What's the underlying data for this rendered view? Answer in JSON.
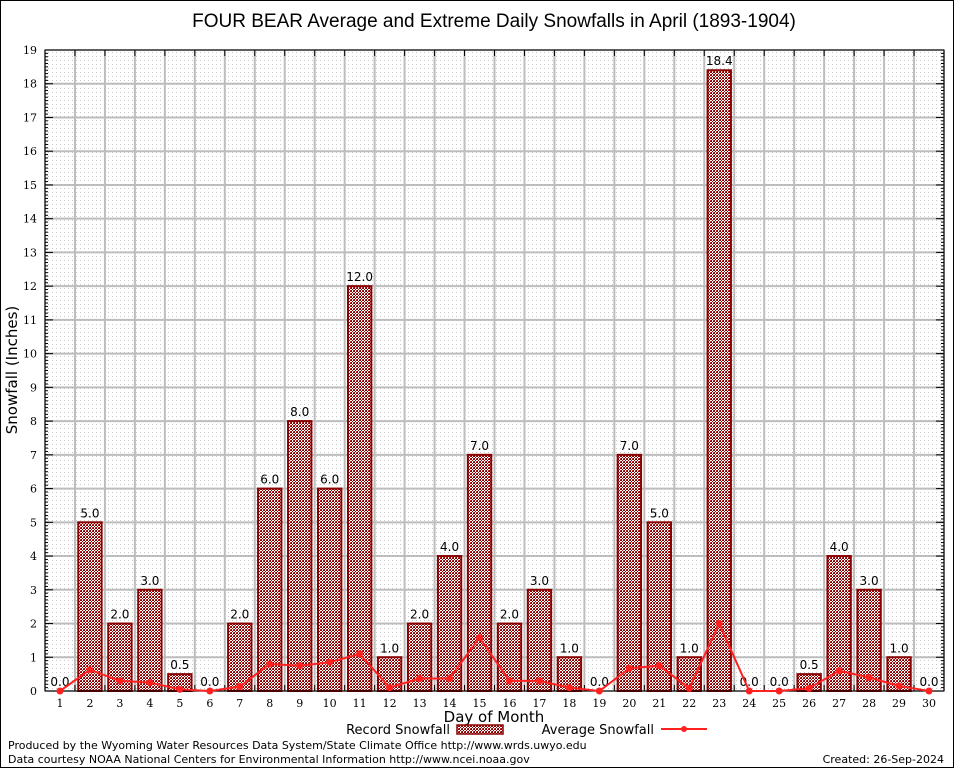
{
  "chart_data": {
    "type": "bar",
    "title": "FOUR BEAR Average and Extreme Daily Snowfalls in April (1893-1904)",
    "xlabel": "Day of Month",
    "ylabel": "Snowfall (Inches)",
    "ylim": [
      0,
      19
    ],
    "yticks": [
      "0",
      "1",
      "2",
      "3",
      "4",
      "5",
      "6",
      "7",
      "8",
      "9",
      "10",
      "11",
      "12",
      "13",
      "14",
      "15",
      "16",
      "17",
      "18",
      "19"
    ],
    "grid": true,
    "categories": [
      "1",
      "2",
      "3",
      "4",
      "5",
      "6",
      "7",
      "8",
      "9",
      "10",
      "11",
      "12",
      "13",
      "14",
      "15",
      "16",
      "17",
      "18",
      "19",
      "20",
      "21",
      "22",
      "23",
      "24",
      "25",
      "26",
      "27",
      "28",
      "29",
      "30"
    ],
    "series": [
      {
        "name": "Record Snowfall",
        "type": "bar",
        "color": "#8b0000",
        "values": [
          0.0,
          5.0,
          2.0,
          3.0,
          0.5,
          0.0,
          2.0,
          6.0,
          8.0,
          6.0,
          12.0,
          1.0,
          2.0,
          4.0,
          7.0,
          2.0,
          3.0,
          1.0,
          0.0,
          7.0,
          5.0,
          1.0,
          18.4,
          0.0,
          0.0,
          0.5,
          4.0,
          3.0,
          1.0,
          0.0
        ],
        "labels": [
          "0.0",
          "5.0",
          "2.0",
          "3.0",
          "0.5",
          "0.0",
          "2.0",
          "6.0",
          "8.0",
          "6.0",
          "12.0",
          "1.0",
          "2.0",
          "4.0",
          "7.0",
          "2.0",
          "3.0",
          "1.0",
          "0.0",
          "7.0",
          "5.0",
          "1.0",
          "18.4",
          "0.0",
          "0.0",
          "0.5",
          "4.0",
          "3.0",
          "1.0",
          "0.0"
        ]
      },
      {
        "name": "Average Snowfall",
        "type": "line",
        "color": "#ff2020",
        "values": [
          0.0,
          0.63,
          0.3,
          0.25,
          0.05,
          0.0,
          0.13,
          0.8,
          0.75,
          0.85,
          1.1,
          0.1,
          0.37,
          0.37,
          1.58,
          0.3,
          0.3,
          0.1,
          0.0,
          0.67,
          0.75,
          0.08,
          2.0,
          0.0,
          0.0,
          0.08,
          0.6,
          0.4,
          0.15,
          0.0
        ]
      }
    ],
    "legend": "bottom-center"
  },
  "footer": {
    "produced": "Produced by the Wyoming Water Resources Data System/State Climate Office http://www.wrds.uwyo.edu",
    "courtesy": "Data courtesy NOAA National Centers for Environmental Information http://www.ncei.noaa.gov",
    "created": "Created: 26-Sep-2024"
  }
}
